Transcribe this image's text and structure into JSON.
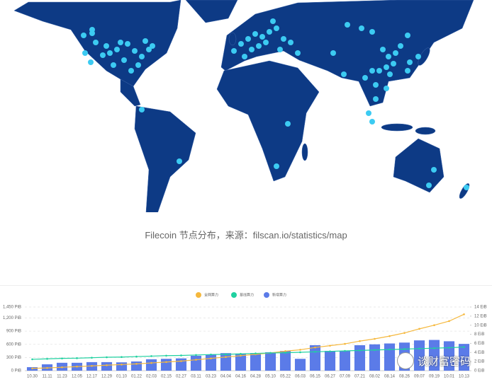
{
  "caption": "Filecoin 节点分布，来源：filscan.io/statistics/map",
  "watermark": "谈财富密码",
  "chart_data": {
    "type": "combo",
    "categories": [
      "10.30",
      "11.11",
      "11.23",
      "12.05",
      "12.17",
      "12.29",
      "01.10",
      "01.22",
      "02.03",
      "02.15",
      "02.27",
      "03.11",
      "03.23",
      "04.04",
      "04.16",
      "04.28",
      "05.10",
      "05.22",
      "06.03",
      "06.15",
      "06.27",
      "07.09",
      "07.21",
      "08.02",
      "08.14",
      "08.26",
      "09.07",
      "09.19",
      "10.01",
      "10.13"
    ],
    "series": [
      {
        "name": "全网算力",
        "type": "line",
        "axis": "y2",
        "color": "#f5b83d",
        "values": [
          0.5,
          0.6,
          0.75,
          0.9,
          1.05,
          1.2,
          1.35,
          1.5,
          1.7,
          1.9,
          2.1,
          2.4,
          2.7,
          3.0,
          3.3,
          3.6,
          3.9,
          4.3,
          4.6,
          5.1,
          5.5,
          5.9,
          6.5,
          7.0,
          7.6,
          8.3,
          9.2,
          10.0,
          10.9,
          12.4
        ]
      },
      {
        "name": "基线算力",
        "type": "line",
        "axis": "y2",
        "color": "#1fd1a0",
        "values": [
          2.5,
          2.6,
          2.7,
          2.75,
          2.85,
          2.95,
          3.0,
          3.1,
          3.2,
          3.3,
          3.35,
          3.45,
          3.55,
          3.6,
          3.7,
          3.8,
          3.9,
          3.95,
          4.05,
          4.15,
          4.25,
          4.35,
          4.45,
          4.55,
          4.65,
          4.75,
          4.85,
          4.95,
          5.05,
          5.2
        ]
      },
      {
        "name": "新增算力",
        "type": "bar",
        "axis": "y",
        "color": "#5b7be8",
        "values": [
          80,
          145,
          180,
          180,
          195,
          195,
          190,
          210,
          260,
          270,
          280,
          340,
          370,
          400,
          390,
          400,
          420,
          450,
          270,
          580,
          450,
          450,
          580,
          600,
          620,
          640,
          690,
          700,
          670,
          610
        ]
      }
    ],
    "ylim": [
      0,
      1450
    ],
    "yticks": [
      {
        "value": 0,
        "label": "0 PiB"
      },
      {
        "value": 300,
        "label": "300 PiB"
      },
      {
        "value": 600,
        "label": "600 PiB"
      },
      {
        "value": 900,
        "label": "900 PiB"
      },
      {
        "value": 1200,
        "label": "1,200 PiB"
      },
      {
        "value": 1450,
        "label": "1,450 PiB"
      }
    ],
    "y2lim": [
      0,
      14
    ],
    "y2ticks": [
      {
        "value": 0,
        "label": "0 EiB"
      },
      {
        "value": 2,
        "label": "2 EiB"
      },
      {
        "value": 4,
        "label": "4 EiB"
      },
      {
        "value": 6,
        "label": "6 EiB"
      },
      {
        "value": 8,
        "label": "8 EiB"
      },
      {
        "value": 10,
        "label": "10 EiB"
      },
      {
        "value": 12,
        "label": "12 EiB"
      },
      {
        "value": 14,
        "label": "14 EiB"
      }
    ],
    "grid": true
  }
}
